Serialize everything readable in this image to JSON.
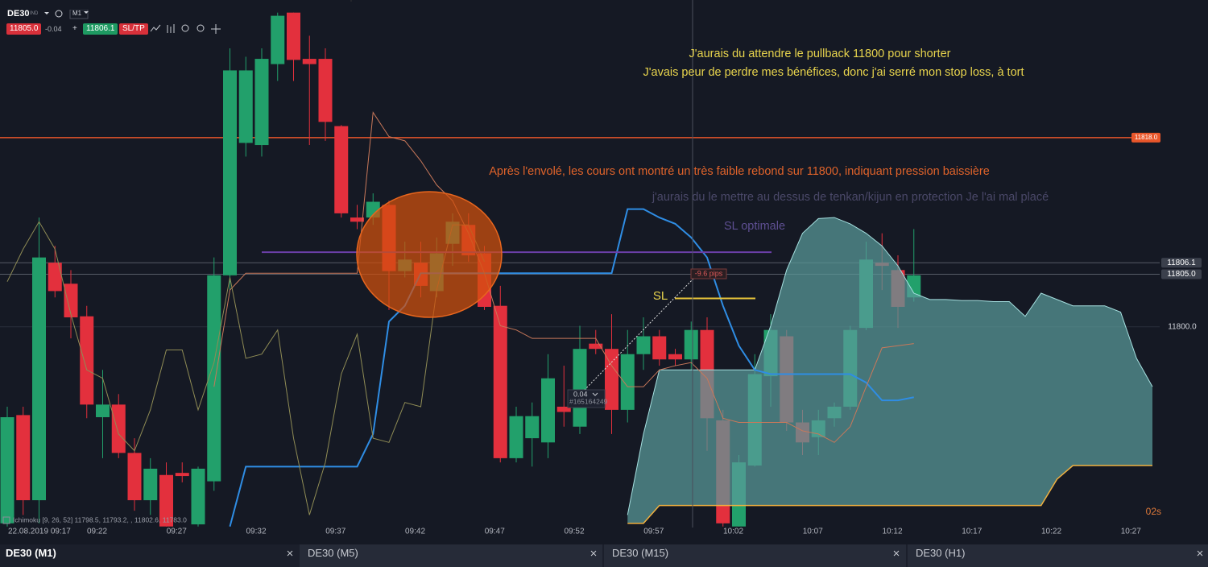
{
  "toolbar": {
    "symbol": "DE30",
    "badge": "IND",
    "timeframe": "M1",
    "bid": "11805.0",
    "spread": "-0.04",
    "plus": "+",
    "ask": "11806.1",
    "sltp": "SL/TP"
  },
  "chart_data": {
    "type": "candlestick",
    "up_color": "#22a06b",
    "down_color": "#e3303d",
    "categories": [
      null,
      "22.08.2019 09:17",
      null,
      null,
      null,
      null,
      "09:22",
      null,
      null,
      null,
      null,
      "09:27",
      null,
      null,
      null,
      null,
      "09:32",
      null,
      null,
      null,
      null,
      "09:37",
      null,
      null,
      null,
      null,
      "09:42",
      null,
      null,
      null,
      null,
      "09:47",
      null,
      null,
      null,
      null,
      "09:52",
      null,
      null,
      null,
      null,
      "09:57",
      null,
      null,
      null,
      null,
      "10:02",
      null,
      null,
      null,
      null,
      "10:07",
      null,
      null,
      null,
      null,
      "10:12",
      null,
      null,
      null,
      null,
      "10:17",
      null,
      null,
      null,
      null,
      "10:22",
      null,
      null,
      null,
      null,
      "10:27",
      null
    ],
    "open": [
      11781.3,
      11791.6,
      11783.5,
      11806.1,
      11804.1,
      11801.0,
      11791.4,
      11792.6,
      11788.0,
      11783.5,
      11785.9,
      11786.1,
      11781.2,
      11785.3,
      11804.9,
      11817.5,
      11817.3,
      11825.0,
      11829.9,
      11825.5,
      11825.5,
      11819.1,
      11810.4,
      11810.4,
      11811.6,
      11805.3,
      11806.1,
      11803.4,
      11807.9,
      11809.7,
      11807.0,
      11802.0,
      11787.5,
      11789.4,
      11789.0,
      11792.4,
      11790.5,
      11798.4,
      11797.9,
      11792.1,
      11797.4,
      11799.1,
      11797.4,
      11796.9,
      11799.7,
      11791.1,
      11781.0,
      11786.8,
      11795.3,
      11799.1,
      11790.9,
      11789.5,
      11791.3,
      11792.4,
      11799.9,
      11806.1,
      11805.4,
      11802.8,
      null,
      null,
      null,
      null,
      null,
      null,
      null,
      null,
      null,
      null,
      null,
      null,
      null,
      null,
      null
    ],
    "high": [
      11792.4,
      11792.4,
      11810.4,
      11807.7,
      11805.4,
      11802.0,
      11795.9,
      11793.6,
      11789.4,
      11787.5,
      11787.1,
      11787.1,
      11786.7,
      11806.6,
      11826.5,
      11825.7,
      11826.5,
      11829.9,
      11829.9,
      11827.7,
      11826.5,
      11819.2,
      11811.6,
      11812.7,
      11812.0,
      11808.1,
      11808.1,
      11808.5,
      11810.8,
      11810.8,
      11807.7,
      11803.9,
      11792.4,
      11792.8,
      11797.4,
      11796.3,
      11800.1,
      11799.7,
      11801.2,
      11799.7,
      11800.9,
      11799.7,
      11797.9,
      11800.5,
      11800.9,
      11792.1,
      11787.8,
      11797.4,
      11801.2,
      11799.7,
      11792.1,
      11792.1,
      11792.8,
      11800.1,
      11808.1,
      11808.9,
      11806.8,
      11809.3,
      null,
      null,
      null,
      null,
      null,
      null,
      null,
      null,
      null,
      null,
      null,
      null,
      null,
      null,
      null
    ],
    "low": [
      11781.0,
      11782.1,
      11781.3,
      11802.8,
      11798.9,
      11791.3,
      11787.5,
      11787.5,
      11782.5,
      11782.1,
      11781.0,
      11785.2,
      11781.0,
      11784.4,
      11803.5,
      11816.2,
      11816.2,
      11823.4,
      11823.4,
      11817.3,
      11817.7,
      11810.4,
      11809.3,
      11809.7,
      11801.6,
      11804.7,
      11802.8,
      11802.8,
      11805.8,
      11806.2,
      11801.6,
      11787.1,
      11787.1,
      11786.7,
      11787.5,
      11790.5,
      11789.8,
      11797.4,
      11789.8,
      11790.9,
      11795.9,
      11796.3,
      11796.3,
      11795.9,
      11788.2,
      11781.0,
      11781.0,
      11786.7,
      11792.4,
      11790.1,
      11787.8,
      11787.8,
      11790.5,
      11792.1,
      11799.7,
      11803.5,
      11799.9,
      11802.4,
      null,
      null,
      null,
      null,
      null,
      null,
      null,
      null,
      null,
      null,
      null,
      null,
      null,
      null,
      null
    ],
    "close": [
      11791.4,
      11783.5,
      11806.6,
      11803.4,
      11800.9,
      11792.6,
      11792.6,
      11788.0,
      11783.5,
      11786.5,
      11781.0,
      11785.8,
      11786.5,
      11804.9,
      11824.4,
      11824.4,
      11825.5,
      11829.6,
      11825.4,
      11825.0,
      11819.5,
      11810.8,
      11810.0,
      11811.9,
      11805.3,
      11806.4,
      11803.9,
      11807.0,
      11810.0,
      11806.8,
      11801.9,
      11787.5,
      11791.5,
      11791.5,
      11795.1,
      11791.9,
      11797.9,
      11797.9,
      11792.1,
      11797.4,
      11799.1,
      11796.9,
      11796.9,
      11799.7,
      11791.3,
      11781.3,
      11787.1,
      11795.5,
      11799.7,
      11790.9,
      11789.0,
      11791.1,
      11792.4,
      11799.7,
      11806.4,
      11805.8,
      11801.9,
      11804.9,
      null,
      null,
      null,
      null,
      null,
      null,
      null,
      null,
      null,
      null,
      null,
      null,
      null,
      null,
      null
    ],
    "ylim": [
      11780.9,
      11831.1
    ],
    "yticks": [
      {
        "value": 11800,
        "label": "11800.0"
      }
    ],
    "price_lines": [
      {
        "value": 11818,
        "label": "11818.0",
        "color": "#e8562a"
      },
      {
        "value": 11806.1,
        "label": "11806.1",
        "color": "#565b66"
      },
      {
        "value": 11805,
        "label": "11805.0",
        "color": "#565b66"
      }
    ],
    "indicator_lines": [
      {
        "color": "#2f8de4",
        "width": 2,
        "values": [
          null,
          null,
          null,
          null,
          null,
          null,
          null,
          null,
          null,
          null,
          null,
          null,
          null,
          null,
          11781.0,
          11786.7,
          11786.7,
          11786.7,
          11786.7,
          11786.7,
          11786.7,
          11786.7,
          11786.7,
          11789.8,
          11800.5,
          11802.0,
          11805.1,
          11805.1,
          11805.1,
          11805.1,
          11805.1,
          11805.1,
          11805.1,
          11805.1,
          11805.1,
          11805.1,
          11805.1,
          11805.1,
          11805.1,
          11811.2,
          11811.2,
          11810.4,
          11809.8,
          11808.5,
          11806.6,
          11802.0,
          11798.2,
          11795.9,
          11795.5,
          11795.5,
          11795.5,
          11795.5,
          11795.5,
          11795.5,
          11794.7,
          11793.0,
          11793.0,
          11793.3,
          null,
          null,
          null,
          null,
          null,
          null,
          null,
          null,
          null,
          null,
          null,
          null,
          null,
          null,
          null
        ]
      },
      {
        "color": "#c8785a",
        "width": 1,
        "values": [
          null,
          null,
          null,
          null,
          null,
          null,
          null,
          null,
          null,
          null,
          null,
          null,
          null,
          11794.3,
          11803.5,
          11805.1,
          11805.1,
          11805.1,
          11805.1,
          11805.1,
          11805.1,
          11805.1,
          11805.1,
          11820.4,
          11818.1,
          11817.7,
          11815.8,
          11813.5,
          11812.0,
          11808.9,
          11805.1,
          11800.1,
          11799.7,
          11798.9,
          11798.9,
          11798.9,
          11798.9,
          11798.9,
          11796.3,
          11794.3,
          11794.3,
          11795.9,
          11796.3,
          11796.6,
          11795.1,
          11791.3,
          11790.9,
          11790.9,
          11790.9,
          11790.9,
          11790.1,
          11789.8,
          11789.0,
          11790.5,
          11794.3,
          11798.0,
          11798.2,
          11798.4,
          null,
          null,
          null,
          null,
          null,
          null,
          null,
          null,
          null,
          null,
          null,
          null,
          null,
          null,
          null
        ]
      },
      {
        "color": "#8f8c55",
        "width": 1,
        "values": [
          11804.3,
          11807.4,
          11810.0,
          11807.4,
          11801.2,
          11795.9,
          11795.1,
          11789.8,
          11788.2,
          11792.1,
          11797.8,
          11797.8,
          11792.1,
          11796.6,
          11804.7,
          11797.0,
          11797.4,
          11799.7,
          11789.4,
          11782.1,
          11787.1,
          11795.5,
          11799.3,
          11789.4,
          11789.0,
          11792.8,
          11792.4,
          11803.5,
          11809.7,
          11809.7,
          11806.2,
          null,
          null,
          null,
          null,
          null,
          null,
          null,
          null,
          null,
          null,
          null,
          null,
          null,
          null,
          null,
          null,
          null,
          null,
          null,
          null,
          null,
          null,
          null,
          null,
          null,
          null,
          null,
          null,
          null,
          null,
          null,
          null,
          null,
          null,
          null,
          null,
          null,
          null,
          null,
          null,
          null,
          null
        ]
      }
    ],
    "cloud": {
      "fill": "#5a9a9a",
      "upper_color": "#a6e0e0",
      "lower_color": "#f0b040",
      "upper": [
        null,
        null,
        null,
        null,
        null,
        null,
        null,
        null,
        null,
        null,
        null,
        null,
        null,
        null,
        null,
        null,
        null,
        null,
        null,
        null,
        null,
        null,
        null,
        null,
        null,
        null,
        null,
        null,
        null,
        null,
        null,
        null,
        null,
        null,
        null,
        null,
        null,
        null,
        null,
        11782.1,
        11789.8,
        11795.9,
        11795.9,
        11795.9,
        11795.9,
        11795.9,
        11795.9,
        11795.9,
        11800.1,
        11805.4,
        11808.9,
        11810.3,
        11810.4,
        11809.8,
        11808.9,
        11807.7,
        11805.8,
        11803.2,
        11802.6,
        11802.6,
        11802.5,
        11802.5,
        11802.4,
        11802.4,
        11801.0,
        11803.2,
        11802.6,
        11802.0,
        11802.0,
        11802.0,
        11801.4,
        11797.0,
        11794.3
      ],
      "lower": [
        null,
        null,
        null,
        null,
        null,
        null,
        null,
        null,
        null,
        null,
        null,
        null,
        null,
        null,
        null,
        null,
        null,
        null,
        null,
        null,
        null,
        null,
        null,
        null,
        null,
        null,
        null,
        null,
        null,
        null,
        null,
        null,
        null,
        null,
        null,
        null,
        null,
        null,
        null,
        11781.3,
        11781.3,
        11783.0,
        11783.0,
        11783.0,
        11783.0,
        11783.0,
        11783.0,
        11783.0,
        11783.0,
        11783.0,
        11783.0,
        11783.0,
        11783.0,
        11783.0,
        11783.0,
        11783.0,
        11783.0,
        11783.0,
        11783.0,
        11783.0,
        11783.0,
        11783.0,
        11783.0,
        11783.0,
        11783.0,
        11783.0,
        11785.5,
        11786.8,
        11786.8,
        11786.8,
        11786.8,
        11786.8,
        11786.8
      ]
    },
    "levels": [
      {
        "value": 11807.1,
        "color": "#6b3fa8"
      },
      {
        "value": 11802.7,
        "color": "#e8c53a"
      }
    ],
    "indicator_legend": "Ichimoku [9, 26, 52]  11798.5, 11793.2, , 11802.6, 11783.0",
    "annotations": [
      {
        "text": "J'aurais du attendre le pullback 11800 pour shorter",
        "color": "#e8d44d"
      },
      {
        "text": "J'avais peur de perdre mes bénéfices, donc j'ai serré mon stop loss, à tort",
        "color": "#e8d44d"
      },
      {
        "text": "Après l'envolé, les cours ont montré un très faible rebond sur 11800, indiquant pression baissière",
        "color": "#e0632a"
      },
      {
        "text": "j'aurais du le mettre au dessus de tenkan/kijun en protection  Je l'ai mal placé",
        "color": "#4a4868"
      },
      {
        "text": "SL optimale",
        "color": "#5e4f92"
      },
      {
        "text": "SL",
        "color": "#e8d44d"
      }
    ],
    "trade_labels": [
      "-9.6 pips",
      "0.04",
      "#165164249"
    ],
    "timer": "02s"
  },
  "tabs": [
    "DE30 (M1)",
    "DE30 (M5)",
    "DE30 (M15)",
    "DE30 (H1)"
  ]
}
